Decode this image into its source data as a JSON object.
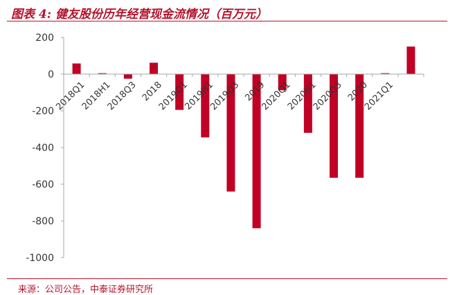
{
  "header": {
    "title": "图表 4:  健友股份历年经营现金流情况（百万元）"
  },
  "footer": {
    "source": "来源：公司公告，中泰证券研究所"
  },
  "colors": {
    "accent": "#b5122b",
    "bar": "#c00025",
    "axis": "#a6a6a6"
  },
  "chart_data": {
    "type": "bar",
    "categories": [
      "2018Q1",
      "2018H1",
      "2018Q3",
      "2018",
      "2019Q1",
      "2019H1",
      "2019Q3",
      "2019",
      "2020Q1",
      "2020H1",
      "2020Q3",
      "2020",
      "2021Q1",
      ""
    ],
    "values": [
      58,
      5,
      -25,
      62,
      -195,
      -345,
      -640,
      -840,
      -88,
      -320,
      -565,
      -565,
      5,
      150
    ],
    "ylim": [
      -1000,
      200
    ],
    "yticks": [
      200,
      0,
      -200,
      -400,
      -600,
      -800,
      -1000
    ],
    "ylabel": "",
    "xlabel": "",
    "grid": false,
    "legend": "none"
  }
}
